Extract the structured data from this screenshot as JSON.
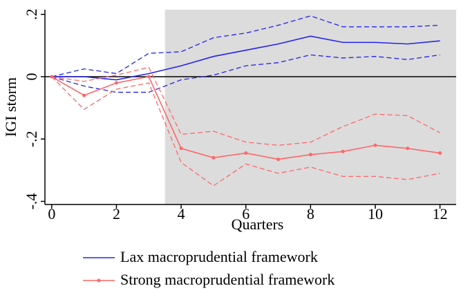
{
  "chart_data": {
    "type": "line",
    "x": [
      0,
      1,
      2,
      3,
      4,
      5,
      6,
      7,
      8,
      9,
      10,
      11,
      12
    ],
    "series": [
      {
        "name": "Lax macroprudential framework",
        "color": "#2222ee",
        "markers": false,
        "values": [
          0,
          0,
          -0.01,
          0.01,
          0.035,
          0.065,
          0.085,
          0.105,
          0.13,
          0.11,
          0.11,
          0.105,
          0.115
        ],
        "upper": [
          0,
          0.025,
          0.01,
          0.075,
          0.08,
          0.125,
          0.14,
          0.165,
          0.195,
          0.16,
          0.16,
          0.16,
          0.165
        ],
        "lower": [
          0,
          -0.03,
          -0.05,
          -0.05,
          -0.01,
          0.005,
          0.035,
          0.045,
          0.07,
          0.06,
          0.065,
          0.055,
          0.07
        ]
      },
      {
        "name": "Strong macroprudential framework",
        "color": "#ff6666",
        "markers": true,
        "values": [
          0,
          -0.06,
          -0.02,
          0,
          -0.23,
          -0.26,
          -0.245,
          -0.265,
          -0.25,
          -0.24,
          -0.22,
          -0.23,
          -0.245
        ],
        "upper": [
          0,
          -0.015,
          0.005,
          0.03,
          -0.185,
          -0.175,
          -0.21,
          -0.22,
          -0.21,
          -0.16,
          -0.12,
          -0.125,
          -0.18
        ],
        "lower": [
          0,
          -0.105,
          -0.04,
          -0.02,
          -0.275,
          -0.35,
          -0.28,
          -0.31,
          -0.29,
          -0.32,
          -0.32,
          -0.33,
          -0.31
        ]
      }
    ],
    "xlabel": "Quarters",
    "ylabel": "IGI storm",
    "xlim": [
      -0.21,
      12.5
    ],
    "ylim": [
      -0.41,
      0.215
    ],
    "xticks": [
      0,
      2,
      4,
      6,
      8,
      10,
      12
    ],
    "yticks": [
      {
        "value": -0.4,
        "label": "-.4"
      },
      {
        "value": -0.2,
        "label": "-.2"
      },
      0,
      {
        "value": 0.2,
        "label": ".2"
      }
    ],
    "shade_xlim": [
      3.5,
      12.5
    ],
    "shade_color": "#dcdcdc",
    "hline": 0,
    "legend": "bottom"
  }
}
